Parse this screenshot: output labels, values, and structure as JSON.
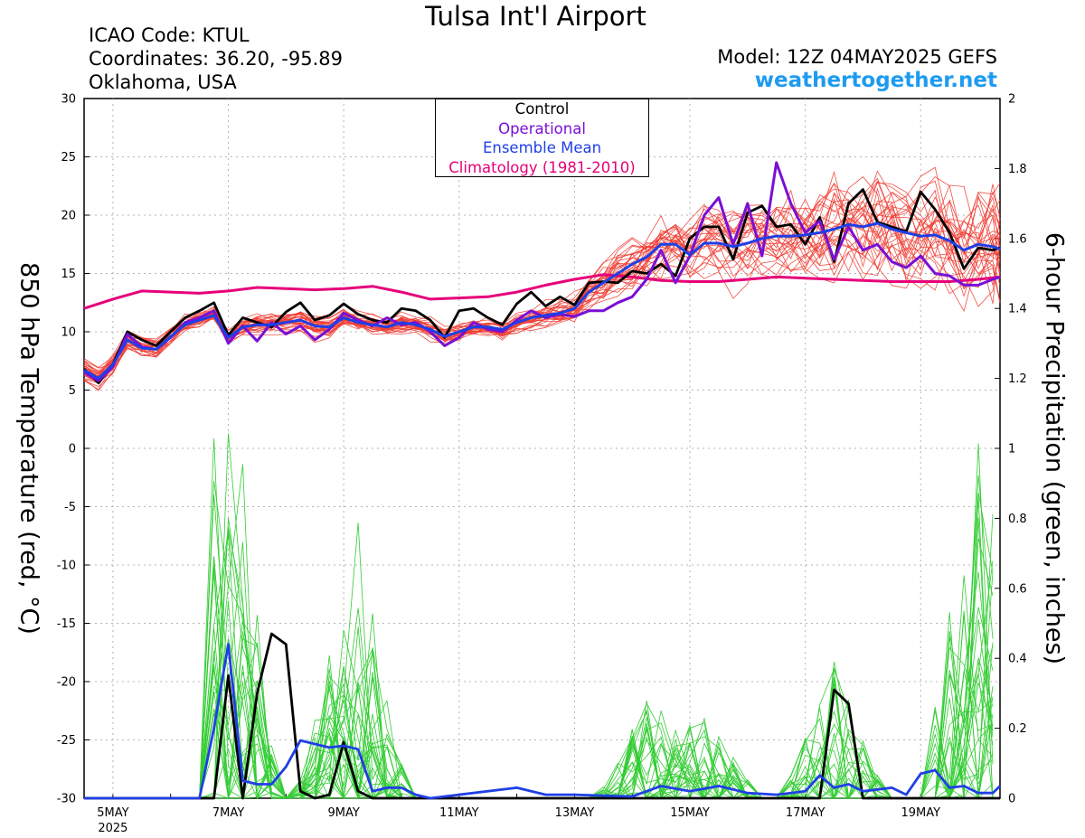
{
  "header": {
    "title": "Tulsa Int'l Airport",
    "icao": "ICAO Code: KTUL",
    "coords": "Coordinates: 36.20, -95.89",
    "state": "Oklahoma, USA",
    "model": "Model: 12Z 04MAY2025 GEFS",
    "site": "weathertogether.net"
  },
  "legend": {
    "control": "Control",
    "operational": "Operational",
    "ensemble_mean": "Ensemble Mean",
    "climatology": "Climatology (1981-2010)"
  },
  "colors": {
    "control": "#000000",
    "operational": "#7a0fd6",
    "ensemble_mean": "#1f3fe6",
    "climatology": "#e6007a",
    "members_temp": "#f03c32",
    "members_precip": "#33cc33",
    "site": "#1e9bf0"
  },
  "chart_data": {
    "type": "line",
    "ylabel": "850 hPa Temperature (red, °C)",
    "y2label": "6-hour Precipitation (green, inches)",
    "ylim": [
      -30,
      30
    ],
    "y2lim": [
      0,
      2
    ],
    "yticks": [
      "30",
      "25",
      "20",
      "15",
      "10",
      "5",
      "0",
      "-5",
      "-10",
      "-15",
      "-20",
      "-25",
      "-30"
    ],
    "y2ticks": [
      "2",
      "1.8",
      "1.6",
      "1.4",
      "1.2",
      "1",
      "0.8",
      "0.6",
      "0.4",
      "0.2",
      "0"
    ],
    "xlim_days": [
      4.5,
      20.375
    ],
    "xticks": [
      "5MAY",
      "7MAY",
      "9MAY",
      "11MAY",
      "13MAY",
      "15MAY",
      "17MAY",
      "19MAY"
    ],
    "year_label": "2025",
    "grid": true,
    "legend_position": "top-center",
    "series": [
      {
        "name": "Climatology (1981-2010)",
        "x": [
          4.5,
          5.0,
          5.5,
          6.0,
          6.5,
          7.0,
          7.5,
          8.0,
          8.5,
          9.0,
          9.5,
          10.0,
          10.5,
          11.0,
          11.5,
          12.0,
          12.5,
          13.0,
          13.5,
          14.0,
          14.5,
          15.0,
          15.5,
          16.0,
          16.5,
          17.0,
          17.5,
          18.0,
          18.5,
          19.0,
          19.5,
          20.0,
          20.375
        ],
        "values": [
          12.0,
          12.8,
          13.5,
          13.4,
          13.3,
          13.5,
          13.8,
          13.7,
          13.6,
          13.7,
          13.9,
          13.4,
          12.8,
          12.9,
          13.0,
          13.4,
          14.0,
          14.5,
          14.9,
          14.7,
          14.4,
          14.3,
          14.3,
          14.5,
          14.7,
          14.6,
          14.5,
          14.4,
          14.3,
          14.3,
          14.3,
          14.5,
          14.7
        ]
      },
      {
        "name": "Control",
        "x": [
          4.5,
          4.75,
          5.0,
          5.25,
          5.5,
          5.75,
          6.0,
          6.25,
          6.5,
          6.75,
          7.0,
          7.25,
          7.5,
          7.75,
          8.0,
          8.25,
          8.5,
          8.75,
          9.0,
          9.25,
          9.5,
          9.75,
          10.0,
          10.25,
          10.5,
          10.75,
          11.0,
          11.25,
          11.5,
          11.75,
          12.0,
          12.25,
          12.5,
          12.75,
          13.0,
          13.25,
          13.5,
          13.75,
          14.0,
          14.25,
          14.5,
          14.75,
          15.0,
          15.25,
          15.5,
          15.75,
          16.0,
          16.25,
          16.5,
          16.75,
          17.0,
          17.25,
          17.5,
          17.75,
          18.0,
          18.25,
          18.5,
          18.75,
          19.0,
          19.25,
          19.5,
          19.75,
          20.0,
          20.25,
          20.375
        ],
        "values": [
          6.8,
          5.6,
          7.2,
          10.0,
          9.3,
          8.8,
          10.0,
          11.2,
          11.8,
          12.5,
          9.7,
          11.2,
          10.8,
          10.4,
          11.7,
          12.5,
          11.0,
          11.4,
          12.4,
          11.5,
          11.0,
          10.8,
          12.0,
          11.8,
          11.0,
          9.5,
          11.8,
          12.0,
          11.2,
          10.6,
          12.4,
          13.4,
          12.2,
          13.0,
          12.3,
          14.2,
          14.3,
          14.2,
          15.2,
          15.0,
          15.8,
          14.8,
          18.0,
          19.0,
          19.0,
          16.2,
          20.2,
          20.8,
          19.0,
          19.2,
          17.5,
          19.8,
          16.0,
          21.0,
          22.2,
          19.4,
          19.0,
          18.6,
          22.0,
          20.5,
          18.5,
          15.4,
          17.2,
          17.0,
          17.2
        ]
      },
      {
        "name": "Operational",
        "x": [
          4.5,
          4.75,
          5.0,
          5.25,
          5.5,
          5.75,
          6.0,
          6.25,
          6.5,
          6.75,
          7.0,
          7.25,
          7.5,
          7.75,
          8.0,
          8.25,
          8.5,
          8.75,
          9.0,
          9.25,
          9.5,
          9.75,
          10.0,
          10.25,
          10.5,
          10.75,
          11.0,
          11.25,
          11.5,
          11.75,
          12.0,
          12.25,
          12.5,
          12.75,
          13.0,
          13.25,
          13.5,
          13.75,
          14.0,
          14.25,
          14.5,
          14.75,
          15.0,
          15.25,
          15.5,
          15.75,
          16.0,
          16.25,
          16.5,
          16.75,
          17.0,
          17.25,
          17.5,
          17.75,
          18.0,
          18.25,
          18.5,
          18.75,
          19.0,
          19.25,
          19.5,
          19.75,
          20.0,
          20.25,
          20.375
        ],
        "values": [
          6.5,
          5.8,
          7.0,
          9.8,
          8.7,
          8.5,
          9.5,
          10.8,
          11.2,
          11.8,
          9.0,
          10.5,
          9.2,
          10.8,
          9.8,
          10.5,
          9.3,
          10.2,
          11.6,
          11.0,
          10.5,
          11.2,
          10.6,
          10.8,
          10.0,
          8.8,
          9.5,
          10.8,
          10.2,
          10.0,
          11.0,
          11.8,
          11.2,
          11.5,
          11.3,
          11.8,
          11.8,
          12.5,
          13.0,
          14.5,
          17.0,
          14.2,
          16.5,
          20.0,
          21.5,
          17.5,
          21.0,
          16.5,
          24.5,
          21.0,
          18.5,
          19.5,
          16.2,
          19.0,
          17.0,
          17.5,
          16.0,
          15.5,
          16.5,
          15.0,
          14.8,
          14.0,
          14.0,
          14.5,
          14.7
        ]
      },
      {
        "name": "Ensemble Mean",
        "x": [
          4.5,
          4.75,
          5.0,
          5.25,
          5.5,
          5.75,
          6.0,
          6.25,
          6.5,
          6.75,
          7.0,
          7.25,
          7.5,
          7.75,
          8.0,
          8.25,
          8.5,
          8.75,
          9.0,
          9.25,
          9.5,
          9.75,
          10.0,
          10.25,
          10.5,
          10.75,
          11.0,
          11.25,
          11.5,
          11.75,
          12.0,
          12.25,
          12.5,
          12.75,
          13.0,
          13.25,
          13.5,
          13.75,
          14.0,
          14.25,
          14.5,
          14.75,
          15.0,
          15.25,
          15.5,
          15.75,
          16.0,
          16.25,
          16.5,
          16.75,
          17.0,
          17.25,
          17.5,
          17.75,
          18.0,
          18.25,
          18.5,
          18.75,
          19.0,
          19.25,
          19.5,
          19.75,
          20.0,
          20.25,
          20.375
        ],
        "values": [
          6.7,
          6.0,
          7.2,
          9.3,
          8.6,
          8.5,
          9.6,
          10.6,
          11.0,
          11.4,
          9.5,
          10.4,
          10.6,
          10.6,
          10.8,
          11.0,
          10.5,
          10.4,
          11.2,
          10.8,
          10.6,
          10.4,
          10.8,
          10.6,
          10.2,
          9.6,
          10.0,
          10.4,
          10.4,
          10.2,
          10.8,
          11.2,
          11.4,
          11.6,
          12.0,
          13.4,
          14.2,
          15.0,
          15.8,
          16.4,
          17.5,
          17.5,
          16.6,
          17.6,
          17.6,
          17.3,
          17.6,
          18.0,
          18.2,
          18.2,
          18.3,
          18.5,
          18.8,
          19.2,
          19.0,
          19.3,
          18.8,
          18.5,
          18.2,
          18.3,
          17.8,
          17.0,
          17.5,
          17.3,
          17.1
        ]
      }
    ],
    "precip_series": [
      {
        "name": "Control",
        "x": [
          4.5,
          6.5,
          6.75,
          7.0,
          7.25,
          7.5,
          7.75,
          8.0,
          8.25,
          8.5,
          8.75,
          9.0,
          9.25,
          9.5,
          9.75,
          10.0,
          10.25,
          10.5,
          17.0,
          17.25,
          17.5,
          17.75,
          18.0,
          18.25,
          20.375
        ],
        "values": [
          0.0,
          0.0,
          0.0,
          0.35,
          0.0,
          0.3,
          0.47,
          0.44,
          0.02,
          0.0,
          0.01,
          0.16,
          0.02,
          0.0,
          0.0,
          0.0,
          0.0,
          0.0,
          0.0,
          0.0,
          0.31,
          0.27,
          0.0,
          0.0,
          0.0
        ]
      },
      {
        "name": "Ensemble Mean",
        "x": [
          4.5,
          6.5,
          6.75,
          7.0,
          7.25,
          7.5,
          7.75,
          8.0,
          8.25,
          8.5,
          8.75,
          9.0,
          9.25,
          9.5,
          9.75,
          10.0,
          10.25,
          10.5,
          11.0,
          12.0,
          12.5,
          13.0,
          14.0,
          14.5,
          15.0,
          15.5,
          16.0,
          16.5,
          17.0,
          17.25,
          17.5,
          17.75,
          18.0,
          18.5,
          18.75,
          19.0,
          19.25,
          19.5,
          19.75,
          20.0,
          20.25,
          20.375
        ],
        "values": [
          0.0,
          0.0,
          0.2,
          0.44,
          0.05,
          0.04,
          0.04,
          0.09,
          0.165,
          0.155,
          0.145,
          0.15,
          0.14,
          0.02,
          0.03,
          0.03,
          0.01,
          0.0,
          0.01,
          0.03,
          0.01,
          0.01,
          0.005,
          0.035,
          0.02,
          0.035,
          0.015,
          0.01,
          0.02,
          0.065,
          0.03,
          0.04,
          0.02,
          0.03,
          0.01,
          0.07,
          0.08,
          0.03,
          0.035,
          0.015,
          0.015,
          0.035
        ]
      }
    ]
  }
}
